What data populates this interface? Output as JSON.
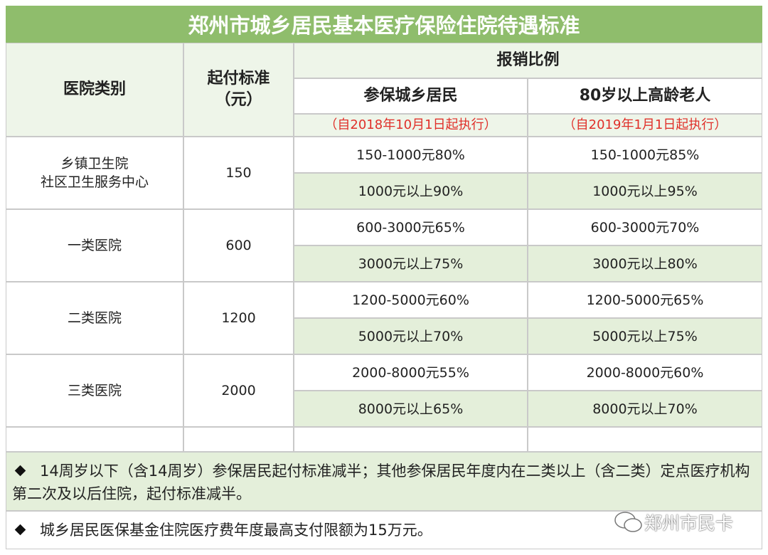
{
  "title": "郑州市城乡居民基本医疗保险住院待遇标准",
  "header": {
    "hospital_type": "医院类别",
    "deductible": [
      "起付标准",
      "（元）"
    ],
    "reimbursement": "报销比例",
    "groups": [
      {
        "name": "参保城乡居民",
        "effective": "（自2018年10月1日起执行）"
      },
      {
        "name": "80岁以上高龄老人",
        "effective": "（自2019年1月1日起执行）"
      }
    ]
  },
  "rows": [
    {
      "hospital_type": [
        "乡镇卫生院",
        "社区卫生服务中心"
      ],
      "deductible": 150,
      "tiers": [
        [
          "150-1000元80%",
          "150-1000元85%"
        ],
        [
          "1000元以上90%",
          "1000元以上95%"
        ]
      ]
    },
    {
      "hospital_type": [
        "一类医院"
      ],
      "deductible": 600,
      "tiers": [
        [
          "600-3000元65%",
          "600-3000元70%"
        ],
        [
          "3000元以上75%",
          "3000元以上80%"
        ]
      ]
    },
    {
      "hospital_type": [
        "二类医院"
      ],
      "deductible": 1200,
      "tiers": [
        [
          "1200-5000元60%",
          "1200-5000元65%"
        ],
        [
          "5000元以上70%",
          "5000元以上75%"
        ]
      ]
    },
    {
      "hospital_type": [
        "三类医院"
      ],
      "deductible": 2000,
      "tiers": [
        [
          "2000-8000元55%",
          "2000-8000元60%"
        ],
        [
          "8000元以上65%",
          "8000元以上70%"
        ]
      ]
    }
  ],
  "notes": [
    "14周岁以下（含14周岁）参保居民起付标准减半；其他参保居民年度内在二类以上（含二类）定点医疗机构第二次及以后住院，起付标准减半。",
    "城乡居民医保基金住院医疗费年度最高支付限额为15万元。"
  ],
  "watermark": "郑州市民卡"
}
